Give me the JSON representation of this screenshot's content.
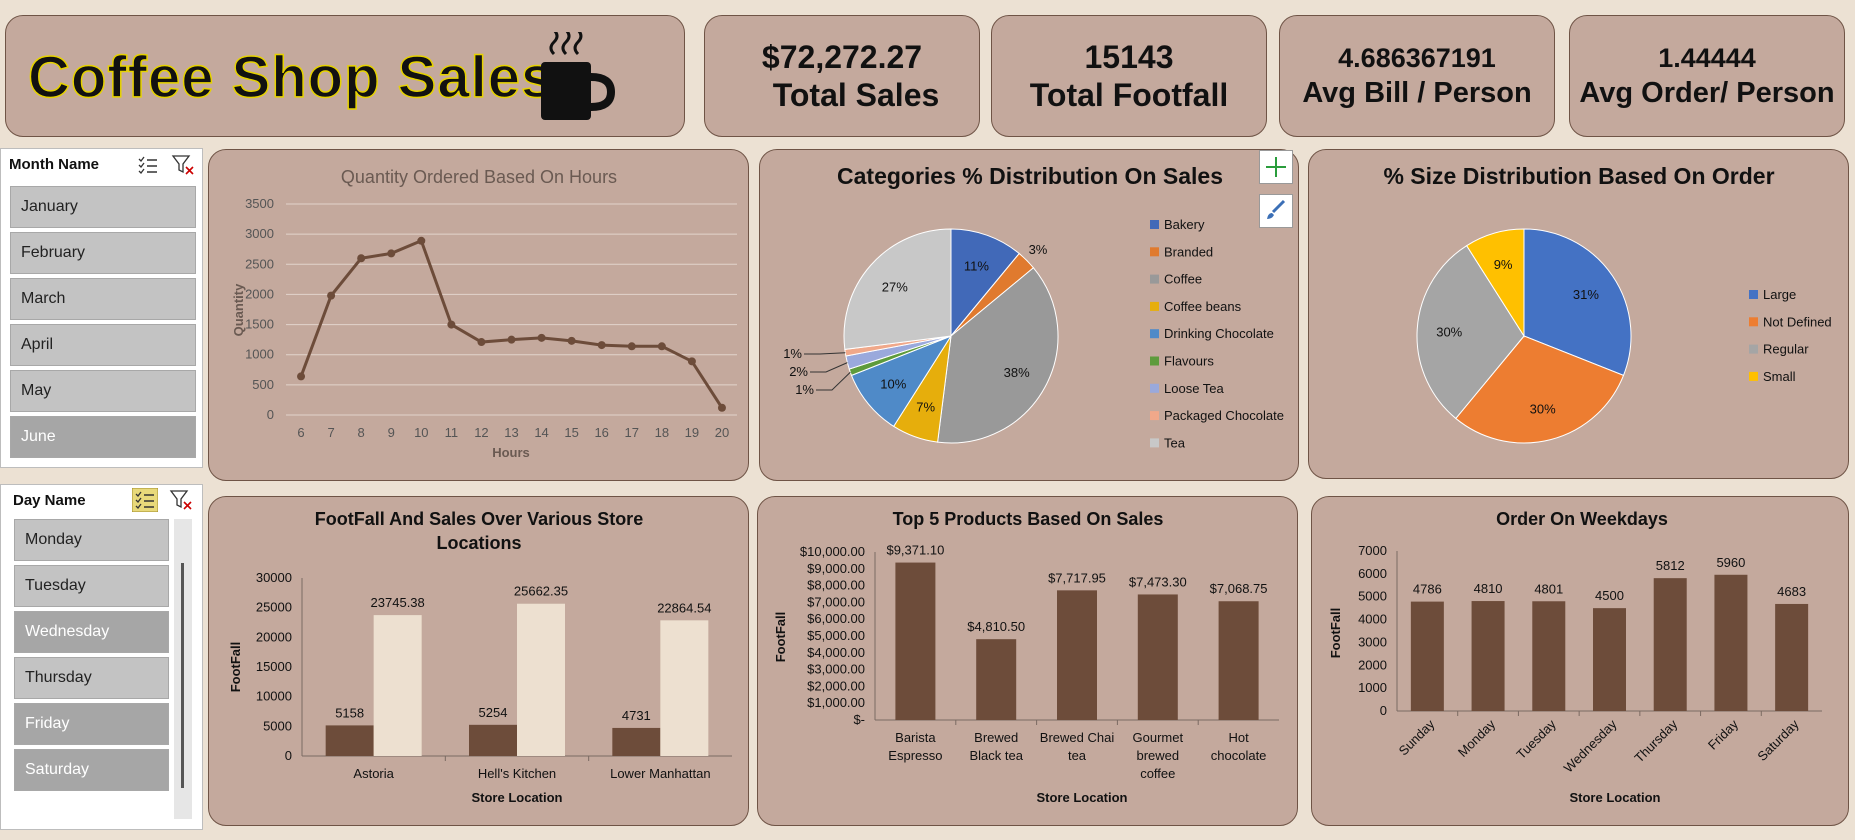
{
  "header": {
    "title": "Coffee Shop Sales"
  },
  "kpis": [
    {
      "value": "$72,272.27",
      "label": "Total Sales"
    },
    {
      "value": "15143",
      "label": "Total Footfall"
    },
    {
      "value": "4.686367191",
      "label": "Avg Bill / Person"
    },
    {
      "value": "1.44444",
      "label": "Avg Order/ Person"
    }
  ],
  "month_slicer": {
    "title": "Month Name",
    "items": [
      {
        "label": "January",
        "dim": false
      },
      {
        "label": "February",
        "dim": false
      },
      {
        "label": "March",
        "dim": false
      },
      {
        "label": "April",
        "dim": false
      },
      {
        "label": "May",
        "dim": false
      },
      {
        "label": "June",
        "dim": true
      }
    ]
  },
  "day_slicer": {
    "title": "Day Name",
    "items": [
      {
        "label": "Monday",
        "dim": false
      },
      {
        "label": "Tuesday",
        "dim": false
      },
      {
        "label": "Wednesday",
        "dim": true
      },
      {
        "label": "Thursday",
        "dim": false
      },
      {
        "label": "Friday",
        "dim": true
      },
      {
        "label": "Saturday",
        "dim": true
      }
    ]
  },
  "colors": {
    "brown": "#6d4c3a",
    "cream": "#ede0d0",
    "card": "#c4a99d",
    "border": "#6f5446"
  },
  "chart_data": [
    {
      "id": "hours",
      "type": "line",
      "title": "Quantity Ordered Based On Hours",
      "xlabel": "Hours",
      "ylabel": "Quantity",
      "x": [
        6,
        7,
        8,
        9,
        10,
        11,
        12,
        13,
        14,
        15,
        16,
        17,
        18,
        19,
        20
      ],
      "values": [
        640,
        1980,
        2600,
        2680,
        2890,
        1500,
        1210,
        1250,
        1280,
        1230,
        1160,
        1140,
        1140,
        890,
        120
      ],
      "ylim": [
        0,
        3500
      ],
      "yticks": [
        0,
        500,
        1000,
        1500,
        2000,
        2500,
        3000,
        3500
      ],
      "grid": true
    },
    {
      "id": "categories",
      "type": "pie",
      "title": "Categories % Distribution On Sales",
      "legend": "right",
      "slices": [
        {
          "name": "Bakery",
          "value": 11,
          "label": "11%",
          "color": "#4169b8"
        },
        {
          "name": "Branded",
          "value": 3,
          "label": "3%",
          "color": "#e07a2e"
        },
        {
          "name": "Coffee",
          "value": 38,
          "label": "38%",
          "color": "#999999"
        },
        {
          "name": "Coffee beans",
          "value": 7,
          "label": "7%",
          "color": "#e6ae0c"
        },
        {
          "name": "Drinking Chocolate",
          "value": 10,
          "label": "10%",
          "color": "#4f8ac8"
        },
        {
          "name": "Flavours",
          "value": 1,
          "label": "1%",
          "color": "#5e9b3c"
        },
        {
          "name": "Loose Tea",
          "value": 2,
          "label": "2%",
          "color": "#9aa9dc"
        },
        {
          "name": "Packaged Chocolate",
          "value": 1,
          "label": "1%",
          "color": "#f0a88a"
        },
        {
          "name": "Tea",
          "value": 27,
          "label": "27%",
          "color": "#c8c8c8"
        }
      ]
    },
    {
      "id": "sizes",
      "type": "pie",
      "title": "% Size Distribution Based On Order",
      "legend": "right",
      "slices": [
        {
          "name": "Large",
          "value": 31,
          "label": "31%",
          "color": "#4472c4"
        },
        {
          "name": "Not Defined",
          "value": 30,
          "label": "30%",
          "color": "#ed7d31"
        },
        {
          "name": "Regular",
          "value": 30,
          "label": "30%",
          "color": "#a5a5a5"
        },
        {
          "name": "Small",
          "value": 9,
          "label": "9%",
          "color": "#ffc000"
        }
      ]
    },
    {
      "id": "stores",
      "type": "bar",
      "title": "FootFall And Sales Over Various Store Locations",
      "xlabel": "Store Location",
      "ylabel": "FootFall",
      "categories": [
        "Astoria",
        "Hell's Kitchen",
        "Lower Manhattan"
      ],
      "series": [
        {
          "values": [
            5158,
            5254,
            4731
          ],
          "labels": [
            "5158",
            "5254",
            "4731"
          ]
        },
        {
          "values": [
            23745.38,
            25662.35,
            22864.54
          ],
          "labels": [
            "23745.38",
            "25662.35",
            "22864.54"
          ]
        }
      ],
      "ylim": [
        0,
        30000
      ],
      "yticks": [
        "0",
        "5000",
        "10000",
        "15000",
        "20000",
        "25000",
        "30000"
      ]
    },
    {
      "id": "products",
      "type": "bar",
      "title": "Top 5 Products Based On Sales",
      "xlabel": "Store Location",
      "ylabel": "FootFall",
      "categories": [
        "Barista Espresso",
        "Brewed Black tea",
        "Brewed Chai tea",
        "Gourmet brewed coffee",
        "Hot chocolate"
      ],
      "values": [
        9371.1,
        4810.5,
        7717.95,
        7473.3,
        7068.75
      ],
      "labels": [
        "$9,371.10",
        "$4,810.50",
        "$7,717.95",
        "$7,473.30",
        "$7,068.75"
      ],
      "ylim": [
        0,
        10000
      ],
      "yticks": [
        "$-",
        "$1,000.00",
        "$2,000.00",
        "$3,000.00",
        "$4,000.00",
        "$5,000.00",
        "$6,000.00",
        "$7,000.00",
        "$8,000.00",
        "$9,000.00",
        "$10,000.00"
      ]
    },
    {
      "id": "weekdays",
      "type": "bar",
      "title": "Order On Weekdays",
      "xlabel": "Store Location",
      "ylabel": "FootFall",
      "categories": [
        "Sunday",
        "Monday",
        "Tuesday",
        "Wednesday",
        "Thursday",
        "Friday",
        "Saturday"
      ],
      "values": [
        4786,
        4810,
        4801,
        4500,
        5812,
        5960,
        4683
      ],
      "labels": [
        "4786",
        "4810",
        "4801",
        "4500",
        "5812",
        "5960",
        "4683"
      ],
      "ylim": [
        0,
        7000
      ],
      "yticks": [
        "0",
        "1000",
        "2000",
        "3000",
        "4000",
        "5000",
        "6000",
        "7000"
      ]
    }
  ]
}
